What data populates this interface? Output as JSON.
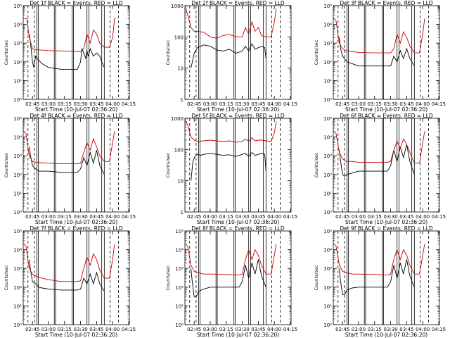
{
  "chart_data": [
    {
      "type": "line",
      "title": "Det 1f  BLACK = Events, RED = LLD",
      "xlabel": "Start Time (10-Jul-07 02:36:20)",
      "ylabel": "Counts/sec",
      "yscale": "log",
      "ylim": [
        1,
        100000
      ],
      "yticklabels": [
        "10⁰",
        "10¹",
        "10²",
        "10³",
        "10⁴",
        "10⁵"
      ],
      "xticklabels": [
        "02:45",
        "03:00",
        "03:15",
        "03:30",
        "03:45",
        "04:00",
        "04:15"
      ],
      "series": [
        {
          "color": "#000000",
          "x": [
            2.7,
            2.72,
            2.75,
            2.77,
            2.8,
            2.85,
            2.9,
            3.0,
            3.2,
            3.45,
            3.5,
            3.52,
            3.55,
            3.58,
            3.6,
            3.62,
            3.65,
            3.7,
            3.75,
            3.8,
            3.83,
            3.87
          ],
          "y": [
            3000,
            1000,
            100,
            50,
            200,
            120,
            80,
            50,
            40,
            40,
            100,
            500,
            300,
            150,
            400,
            200,
            500,
            200,
            300,
            200,
            100,
            50
          ]
        },
        {
          "color": "#cc0000",
          "x": [
            2.64,
            2.66,
            2.7,
            2.75,
            2.8,
            2.9,
            3.0,
            3.2,
            3.45,
            3.5,
            3.55,
            3.6,
            3.65,
            3.7,
            3.75,
            3.8,
            3.87,
            3.95,
            4.0,
            4.03,
            4.05
          ],
          "y": [
            20000,
            20000,
            2000,
            500,
            450,
            420,
            400,
            380,
            350,
            350,
            500,
            3000,
            1000,
            5000,
            3000,
            1000,
            600,
            600,
            2000,
            20000,
            20000
          ]
        }
      ]
    },
    {
      "type": "line",
      "title": "Det 2f  BLACK = Events, RED = LLD",
      "xlabel": "Start Time (10-Jul-07 02:36:20)",
      "ylabel": "Counts/sec",
      "yscale": "log",
      "ylim": [
        1,
        1000
      ],
      "yticklabels": [
        "1",
        "10",
        "100",
        "1000"
      ],
      "xticklabels": [
        "02:45",
        "03:00",
        "03:15",
        "03:30",
        "03:45",
        "04:00",
        "04:15"
      ],
      "series": [
        {
          "color": "#000000",
          "x": [
            2.7,
            2.75,
            2.8,
            2.85,
            2.9,
            3.0,
            3.1,
            3.2,
            3.3,
            3.4,
            3.5,
            3.55,
            3.6,
            3.65,
            3.7,
            3.75,
            3.8,
            3.85,
            3.87
          ],
          "y": [
            10,
            30,
            45,
            50,
            55,
            50,
            38,
            35,
            40,
            30,
            35,
            50,
            35,
            60,
            40,
            45,
            50,
            45,
            20
          ]
        },
        {
          "color": "#cc0000",
          "x": [
            2.62,
            2.65,
            2.7,
            2.75,
            2.8,
            2.9,
            3.0,
            3.1,
            3.2,
            3.3,
            3.4,
            3.5,
            3.55,
            3.6,
            3.65,
            3.7,
            3.75,
            3.8,
            3.87,
            3.95,
            4.0,
            4.03
          ],
          "y": [
            800,
            500,
            200,
            150,
            150,
            140,
            100,
            90,
            110,
            120,
            100,
            100,
            200,
            120,
            300,
            150,
            200,
            110,
            100,
            100,
            300,
            800
          ]
        }
      ]
    },
    {
      "type": "line",
      "title": "Det 3f  BLACK = Events, RED = LLD",
      "xlabel": "Start Time (10-Jul-07 02:36:20)",
      "ylabel": "Counts/sec",
      "yscale": "log",
      "ylim": [
        1,
        100000
      ],
      "yticklabels": [
        "10⁰",
        "10¹",
        "10²",
        "10³",
        "10⁴",
        "10⁵"
      ],
      "xticklabels": [
        "02:45",
        "03:00",
        "03:15",
        "03:30",
        "03:45",
        "04:00",
        "04:15"
      ],
      "series": [
        {
          "color": "#000000",
          "x": [
            2.7,
            2.72,
            2.75,
            2.78,
            2.82,
            2.9,
            3.0,
            3.2,
            3.45,
            3.5,
            3.55,
            3.6,
            3.65,
            3.7,
            3.75,
            3.8,
            3.87
          ],
          "y": [
            2000,
            500,
            200,
            150,
            100,
            80,
            60,
            60,
            60,
            60,
            200,
            100,
            400,
            150,
            500,
            150,
            60
          ]
        },
        {
          "color": "#cc0000",
          "x": [
            2.62,
            2.65,
            2.7,
            2.75,
            2.8,
            2.9,
            3.0,
            3.2,
            3.45,
            3.5,
            3.55,
            3.6,
            3.65,
            3.7,
            3.75,
            3.8,
            3.87,
            3.95,
            4.0,
            4.03
          ],
          "y": [
            20000,
            15000,
            1000,
            500,
            400,
            350,
            320,
            300,
            300,
            300,
            500,
            3000,
            1000,
            4000,
            2000,
            700,
            300,
            300,
            3000,
            20000
          ]
        }
      ]
    },
    {
      "type": "line",
      "title": "Det 4f  BLACK = Events, RED = LLD",
      "xlabel": "Start Time (10-Jul-07 02:36:20)",
      "ylabel": "Counts/sec",
      "yscale": "log",
      "ylim": [
        1,
        100000
      ],
      "yticklabels": [
        "10⁰",
        "10¹",
        "10²",
        "10³",
        "10⁴",
        "10⁵"
      ],
      "xticklabels": [
        "02:45",
        "03:00",
        "03:15",
        "03:30",
        "03:45",
        "04:00",
        "04:15"
      ],
      "series": [
        {
          "color": "#000000",
          "x": [
            2.7,
            2.72,
            2.75,
            2.8,
            2.85,
            2.9,
            3.0,
            3.2,
            3.45,
            3.5,
            3.55,
            3.6,
            3.65,
            3.7,
            3.75,
            3.8,
            3.87
          ],
          "y": [
            3000,
            1000,
            300,
            200,
            150,
            150,
            150,
            130,
            130,
            200,
            800,
            300,
            1500,
            400,
            2000,
            300,
            100
          ]
        },
        {
          "color": "#cc0000",
          "x": [
            2.62,
            2.65,
            2.7,
            2.75,
            2.8,
            2.9,
            3.0,
            3.2,
            3.45,
            3.5,
            3.55,
            3.6,
            3.65,
            3.7,
            3.75,
            3.8,
            3.87,
            3.95,
            4.0,
            4.03
          ],
          "y": [
            20000,
            15000,
            1000,
            500,
            450,
            420,
            400,
            380,
            380,
            400,
            1500,
            5000,
            2000,
            8000,
            3000,
            1000,
            500,
            500,
            5000,
            20000
          ]
        }
      ]
    },
    {
      "type": "line",
      "title": "Det 5f  BLACK = Events, RED = LLD",
      "xlabel": "Start Time (10-Jul-07 02:36:20)",
      "ylabel": "Counts/sec",
      "yscale": "log",
      "ylim": [
        1,
        1000
      ],
      "yticklabels": [
        "1",
        "10",
        "100",
        "1000"
      ],
      "xticklabels": [
        "02:45",
        "03:00",
        "03:15",
        "03:30",
        "03:45",
        "04:00",
        "04:15"
      ],
      "series": [
        {
          "color": "#000000",
          "x": [
            2.7,
            2.73,
            2.76,
            2.8,
            2.85,
            2.9,
            3.0,
            3.1,
            3.2,
            3.3,
            3.4,
            3.5,
            3.55,
            3.6,
            3.65,
            3.7,
            3.75,
            3.8,
            3.85,
            3.87
          ],
          "y": [
            10,
            40,
            60,
            70,
            65,
            70,
            75,
            70,
            65,
            68,
            60,
            70,
            75,
            60,
            80,
            65,
            70,
            75,
            70,
            20
          ]
        },
        {
          "color": "#cc0000",
          "x": [
            2.62,
            2.65,
            2.7,
            2.75,
            2.8,
            2.9,
            3.0,
            3.1,
            3.2,
            3.3,
            3.4,
            3.5,
            3.55,
            3.6,
            3.65,
            3.7,
            3.75,
            3.8,
            3.87,
            3.95,
            4.0,
            4.03
          ],
          "y": [
            800,
            600,
            250,
            200,
            180,
            190,
            200,
            190,
            180,
            190,
            170,
            180,
            220,
            180,
            240,
            190,
            200,
            200,
            190,
            180,
            350,
            800
          ]
        }
      ]
    },
    {
      "type": "line",
      "title": "Det 6f  BLACK = Events, RED = LLD",
      "xlabel": "Start Time (10-Jul-07 02:36:20)",
      "ylabel": "Counts/sec",
      "yscale": "log",
      "ylim": [
        1,
        100000
      ],
      "yticklabels": [
        "10⁰",
        "10¹",
        "10²",
        "10³",
        "10⁴",
        "10⁵"
      ],
      "xticklabels": [
        "02:45",
        "03:00",
        "03:15",
        "03:30",
        "03:45",
        "04:00",
        "04:15"
      ],
      "series": [
        {
          "color": "#000000",
          "x": [
            2.7,
            2.72,
            2.75,
            2.78,
            2.82,
            2.9,
            3.0,
            3.2,
            3.45,
            3.5,
            3.55,
            3.6,
            3.65,
            3.7,
            3.75,
            3.8,
            3.87
          ],
          "y": [
            2000,
            500,
            100,
            80,
            100,
            120,
            150,
            150,
            150,
            300,
            2000,
            500,
            3000,
            800,
            4000,
            500,
            100
          ]
        },
        {
          "color": "#cc0000",
          "x": [
            2.62,
            2.65,
            2.7,
            2.75,
            2.8,
            2.9,
            3.0,
            3.2,
            3.45,
            3.5,
            3.55,
            3.6,
            3.65,
            3.7,
            3.75,
            3.8,
            3.87,
            3.95,
            4.0,
            4.03
          ],
          "y": [
            20000,
            15000,
            1500,
            700,
            500,
            500,
            450,
            450,
            450,
            500,
            2000,
            6000,
            2500,
            8000,
            4000,
            1500,
            400,
            400,
            5000,
            20000
          ]
        }
      ]
    },
    {
      "type": "line",
      "title": "Det 7f  BLACK = Events, RED = LLD",
      "xlabel": "Start Time (10-Jul-07 02:36:20)",
      "ylabel": "Counts/sec",
      "yscale": "log",
      "ylim": [
        1,
        100000
      ],
      "yticklabels": [
        "10⁰",
        "10¹",
        "10²",
        "10³",
        "10⁴",
        "10⁵"
      ],
      "xticklabels": [
        "02:45",
        "03:00",
        "03:15",
        "03:30",
        "03:45",
        "04:00",
        "04:15"
      ],
      "series": [
        {
          "color": "#000000",
          "x": [
            2.7,
            2.72,
            2.75,
            2.8,
            2.85,
            2.9,
            3.0,
            3.2,
            3.45,
            3.5,
            3.55,
            3.6,
            3.65,
            3.7,
            3.75,
            3.8,
            3.87
          ],
          "y": [
            3000,
            800,
            200,
            150,
            100,
            90,
            80,
            70,
            70,
            80,
            300,
            150,
            500,
            150,
            600,
            150,
            60
          ]
        },
        {
          "color": "#cc0000",
          "x": [
            2.62,
            2.65,
            2.7,
            2.75,
            2.8,
            2.9,
            3.0,
            3.2,
            3.45,
            3.5,
            3.55,
            3.6,
            3.65,
            3.7,
            3.75,
            3.8,
            3.87,
            3.95,
            4.0,
            4.03
          ],
          "y": [
            20000,
            15000,
            1000,
            500,
            400,
            300,
            250,
            200,
            200,
            220,
            1000,
            4000,
            1500,
            6000,
            3000,
            800,
            300,
            300,
            3000,
            20000
          ]
        }
      ]
    },
    {
      "type": "line",
      "title": "Det 8f  BLACK = Events, RED = LLD",
      "xlabel": "Start Time (10-Jul-07 02:36:20)",
      "ylabel": "Counts/sec",
      "yscale": "log",
      "ylim": [
        1,
        100000
      ],
      "yticklabels": [
        "10⁰",
        "10¹",
        "10²",
        "10³",
        "10⁴",
        "10⁵"
      ],
      "xticklabels": [
        "02:45",
        "03:00",
        "03:15",
        "03:30",
        "03:45",
        "04:00",
        "04:15"
      ],
      "series": [
        {
          "color": "#000000",
          "x": [
            2.7,
            2.72,
            2.75,
            2.78,
            2.82,
            2.9,
            3.0,
            3.2,
            3.45,
            3.5,
            3.55,
            3.6,
            3.65,
            3.7,
            3.75,
            3.8,
            3.87
          ],
          "y": [
            1000,
            200,
            30,
            30,
            60,
            80,
            100,
            100,
            100,
            200,
            1500,
            300,
            2000,
            500,
            3000,
            400,
            100
          ]
        },
        {
          "color": "#cc0000",
          "x": [
            2.62,
            2.65,
            2.7,
            2.75,
            2.8,
            2.9,
            3.0,
            3.2,
            3.45,
            3.5,
            3.55,
            3.6,
            3.65,
            3.7,
            3.75,
            3.8,
            3.87,
            3.95,
            4.0,
            4.03
          ],
          "y": [
            20000,
            15000,
            1500,
            700,
            600,
            500,
            500,
            480,
            450,
            500,
            3000,
            10000,
            3000,
            10000,
            5000,
            1500,
            500,
            500,
            5000,
            20000
          ]
        }
      ]
    },
    {
      "type": "line",
      "title": "Det 9f  BLACK = Events, RED = LLD",
      "xlabel": "Start Time (10-Jul-07 02:36:20)",
      "ylabel": "Counts/sec",
      "yscale": "log",
      "ylim": [
        1,
        100000
      ],
      "yticklabels": [
        "10⁰",
        "10¹",
        "10²",
        "10³",
        "10⁴",
        "10⁵"
      ],
      "xticklabels": [
        "02:45",
        "03:00",
        "03:15",
        "03:30",
        "03:45",
        "04:00",
        "04:15"
      ],
      "series": [
        {
          "color": "#000000",
          "x": [
            2.7,
            2.72,
            2.75,
            2.78,
            2.82,
            2.9,
            3.0,
            3.2,
            3.45,
            3.5,
            3.55,
            3.6,
            3.65,
            3.7,
            3.75,
            3.8,
            3.87
          ],
          "y": [
            1000,
            200,
            40,
            40,
            70,
            90,
            100,
            100,
            100,
            200,
            1500,
            300,
            2000,
            500,
            3000,
            400,
            100
          ]
        },
        {
          "color": "#cc0000",
          "x": [
            2.62,
            2.65,
            2.7,
            2.75,
            2.8,
            2.9,
            3.0,
            3.2,
            3.45,
            3.5,
            3.55,
            3.6,
            3.65,
            3.7,
            3.75,
            3.8,
            3.87,
            3.95,
            4.0,
            4.03
          ],
          "y": [
            20000,
            15000,
            1500,
            700,
            600,
            500,
            500,
            480,
            450,
            500,
            3000,
            10000,
            3000,
            10000,
            5000,
            1500,
            500,
            500,
            5000,
            20000
          ]
        }
      ]
    }
  ],
  "xaxis_hours": {
    "min": 2.6056,
    "max": 4.2611,
    "tick_values": [
      2.75,
      3.0,
      3.25,
      3.5,
      3.75,
      4.0,
      4.25
    ]
  },
  "markers": {
    "dashed": [
      2.68,
      2.78,
      3.96,
      4.09
    ],
    "solid": [
      2.82,
      2.84,
      3.09,
      3.11,
      3.37,
      3.39,
      3.6,
      3.63,
      3.83,
      3.87
    ]
  }
}
